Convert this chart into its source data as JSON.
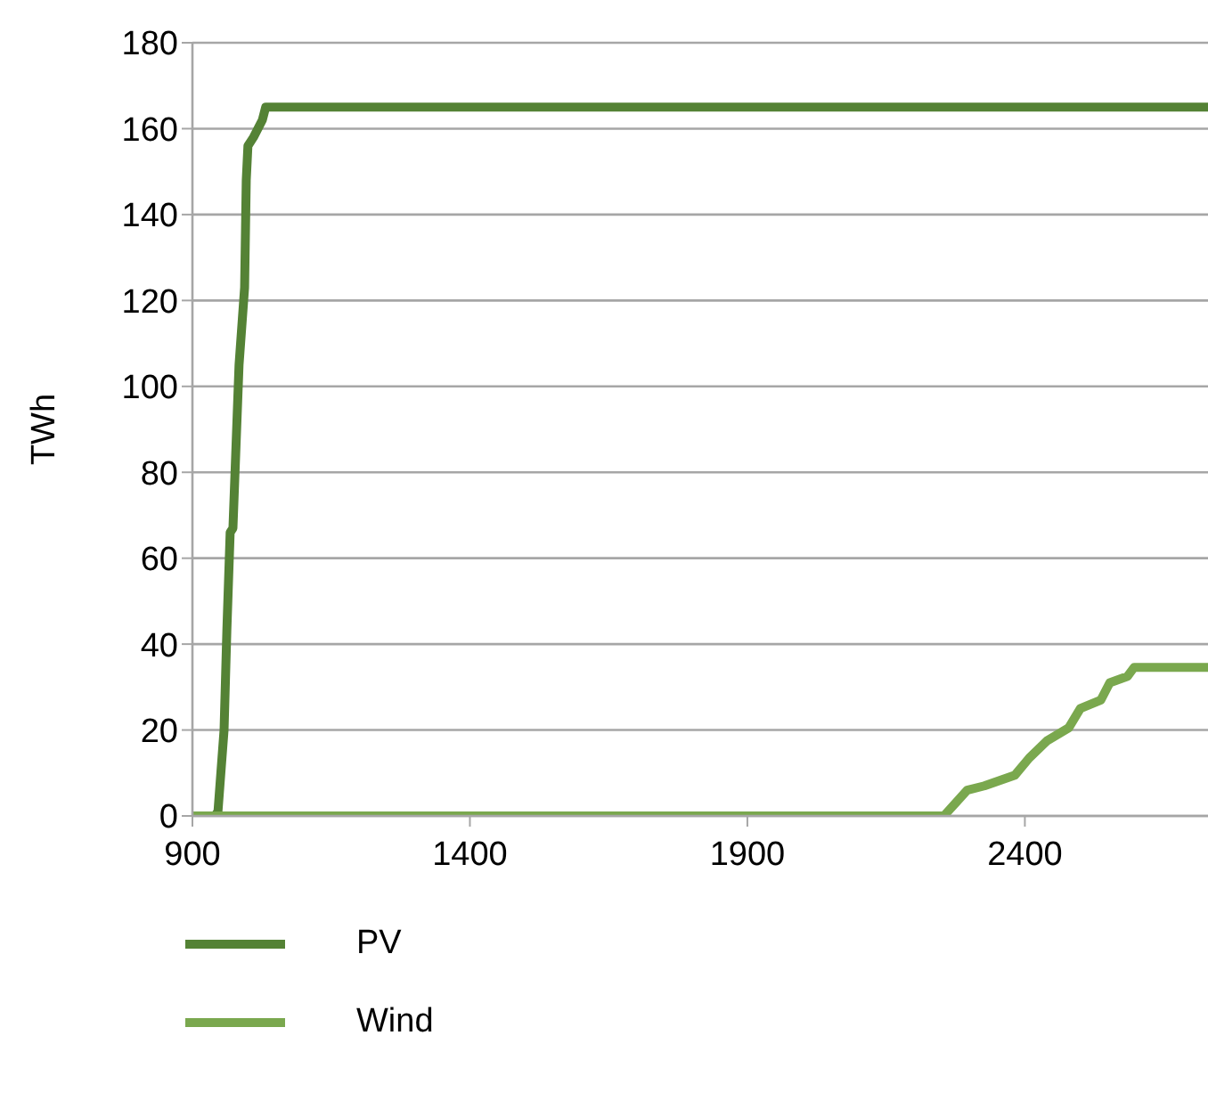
{
  "chart_data": {
    "type": "line",
    "ylabel": "TWh",
    "xlim": [
      900,
      2730
    ],
    "xticks": [
      900,
      1400,
      1900,
      2400
    ],
    "ylim": [
      0,
      180
    ],
    "yticks": [
      0,
      20,
      40,
      60,
      80,
      100,
      120,
      140,
      160,
      180
    ],
    "grid": "y",
    "legend": "bottom",
    "marker": "none",
    "line_style": "solid",
    "series": [
      {
        "name": "PV",
        "color": "#548235",
        "x": [
          900,
          940,
          946,
          957,
          962,
          968,
          973,
          984,
          994,
          997,
          1000,
          1010,
          1026,
          1032,
          2730
        ],
        "values": [
          0,
          0,
          1,
          20,
          43,
          66,
          67,
          105,
          123,
          148,
          156,
          158,
          162,
          165,
          165
        ]
      },
      {
        "name": "Wind",
        "color": "#7aa84e",
        "x": [
          900,
          2254,
          2275,
          2296,
          2327,
          2382,
          2408,
          2440,
          2479,
          2500,
          2537,
          2553,
          2585,
          2597,
          2730
        ],
        "values": [
          0,
          0,
          3,
          6,
          7,
          9.5,
          13.5,
          17.5,
          20.5,
          25,
          27,
          31,
          32.5,
          34.6,
          34.6
        ]
      }
    ]
  }
}
